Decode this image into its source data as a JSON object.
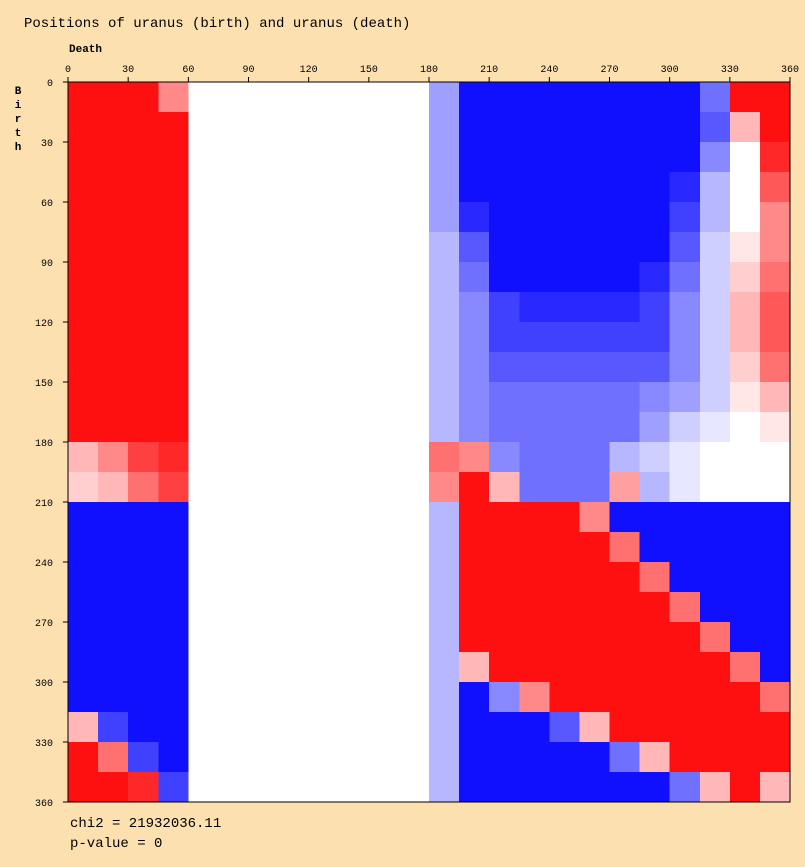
{
  "chart_data": {
    "type": "heatmap",
    "title": "Positions of uranus (birth) and uranus (death)",
    "x_label": "Death",
    "y_label": "Birth",
    "xlim": [
      0,
      360
    ],
    "ylim": [
      0,
      360
    ],
    "xticks": [
      0,
      30,
      60,
      90,
      120,
      150,
      180,
      210,
      240,
      270,
      300,
      330,
      360
    ],
    "yticks": [
      0,
      30,
      60,
      90,
      120,
      150,
      180,
      210,
      240,
      270,
      300,
      330,
      360
    ],
    "colors": {
      "high": "#ff1010",
      "low": "#1010ff",
      "zero": "#ffffff"
    },
    "values": [
      [
        1,
        1,
        1,
        0.5,
        0,
        0,
        0,
        0,
        0,
        0,
        0,
        0,
        -0.4,
        -1,
        -1,
        -1,
        -1,
        -1,
        -1,
        -1,
        -1,
        -0.6,
        1,
        1
      ],
      [
        1,
        1,
        1,
        1,
        0,
        0,
        0,
        0,
        0,
        0,
        0,
        0,
        -0.4,
        -1,
        -1,
        -1,
        -1,
        -1,
        -1,
        -1,
        -1,
        -0.7,
        0.3,
        1
      ],
      [
        1,
        1,
        1,
        1,
        0,
        0,
        0,
        0,
        0,
        0,
        0,
        0,
        -0.4,
        -1,
        -1,
        -1,
        -1,
        -1,
        -1,
        -1,
        -1,
        -0.5,
        0,
        0.9
      ],
      [
        1,
        1,
        1,
        1,
        0,
        0,
        0,
        0,
        0,
        0,
        0,
        0,
        -0.4,
        -1,
        -1,
        -1,
        -1,
        -1,
        -1,
        -1,
        -0.9,
        -0.3,
        0,
        0.7
      ],
      [
        1,
        1,
        1,
        1,
        0,
        0,
        0,
        0,
        0,
        0,
        0,
        0,
        -0.4,
        -0.9,
        -1,
        -1,
        -1,
        -1,
        -1,
        -1,
        -0.8,
        -0.3,
        0,
        0.5
      ],
      [
        1,
        1,
        1,
        1,
        0,
        0,
        0,
        0,
        0,
        0,
        0,
        0,
        -0.3,
        -0.7,
        -1,
        -1,
        -1,
        -1,
        -1,
        -1,
        -0.7,
        -0.2,
        0.1,
        0.5
      ],
      [
        1,
        1,
        1,
        1,
        0,
        0,
        0,
        0,
        0,
        0,
        0,
        0,
        -0.3,
        -0.6,
        -1,
        -1,
        -1,
        -1,
        -1,
        -0.9,
        -0.6,
        -0.2,
        0.2,
        0.6
      ],
      [
        1,
        1,
        1,
        1,
        0,
        0,
        0,
        0,
        0,
        0,
        0,
        0,
        -0.3,
        -0.5,
        -0.8,
        -0.9,
        -0.9,
        -0.9,
        -0.9,
        -0.8,
        -0.5,
        -0.2,
        0.3,
        0.7
      ],
      [
        1,
        1,
        1,
        1,
        0,
        0,
        0,
        0,
        0,
        0,
        0,
        0,
        -0.3,
        -0.5,
        -0.8,
        -0.8,
        -0.8,
        -0.8,
        -0.8,
        -0.8,
        -0.5,
        -0.2,
        0.3,
        0.7
      ],
      [
        1,
        1,
        1,
        1,
        0,
        0,
        0,
        0,
        0,
        0,
        0,
        0,
        -0.3,
        -0.5,
        -0.7,
        -0.7,
        -0.7,
        -0.7,
        -0.7,
        -0.7,
        -0.5,
        -0.2,
        0.2,
        0.6
      ],
      [
        1,
        1,
        1,
        1,
        0,
        0,
        0,
        0,
        0,
        0,
        0,
        0,
        -0.3,
        -0.5,
        -0.6,
        -0.6,
        -0.6,
        -0.6,
        -0.6,
        -0.5,
        -0.4,
        -0.2,
        0.1,
        0.3
      ],
      [
        1,
        1,
        1,
        1,
        0,
        0,
        0,
        0,
        0,
        0,
        0,
        0,
        -0.3,
        -0.5,
        -0.6,
        -0.6,
        -0.6,
        -0.6,
        -0.6,
        -0.4,
        -0.2,
        -0.1,
        0,
        0.1
      ],
      [
        0.3,
        0.5,
        0.8,
        0.9,
        0,
        0,
        0,
        0,
        0,
        0,
        0,
        0,
        0.6,
        0.5,
        -0.5,
        -0.6,
        -0.6,
        -0.6,
        -0.3,
        -0.2,
        -0.1,
        0,
        0,
        0
      ],
      [
        0.2,
        0.3,
        0.6,
        0.8,
        0,
        0,
        0,
        0,
        0,
        0,
        0,
        0,
        0.5,
        1,
        0.3,
        -0.6,
        -0.6,
        -0.6,
        0.4,
        -0.3,
        -0.1,
        0,
        0,
        0
      ],
      [
        -1,
        -1,
        -1,
        -1,
        0,
        0,
        0,
        0,
        0,
        0,
        0,
        0,
        -0.3,
        1,
        1,
        1,
        1,
        0.5,
        -1,
        -1,
        -1,
        -1,
        -1,
        -1
      ],
      [
        -1,
        -1,
        -1,
        -1,
        0,
        0,
        0,
        0,
        0,
        0,
        0,
        0,
        -0.3,
        1,
        1,
        1,
        1,
        1,
        0.6,
        -1,
        -1,
        -1,
        -1,
        -1
      ],
      [
        -1,
        -1,
        -1,
        -1,
        0,
        0,
        0,
        0,
        0,
        0,
        0,
        0,
        -0.3,
        1,
        1,
        1,
        1,
        1,
        1,
        0.6,
        -1,
        -1,
        -1,
        -1
      ],
      [
        -1,
        -1,
        -1,
        -1,
        0,
        0,
        0,
        0,
        0,
        0,
        0,
        0,
        -0.3,
        1,
        1,
        1,
        1,
        1,
        1,
        1,
        0.6,
        -1,
        -1,
        -1
      ],
      [
        -1,
        -1,
        -1,
        -1,
        0,
        0,
        0,
        0,
        0,
        0,
        0,
        0,
        -0.3,
        1,
        1,
        1,
        1,
        1,
        1,
        1,
        1,
        0.6,
        -1,
        -1
      ],
      [
        -1,
        -1,
        -1,
        -1,
        0,
        0,
        0,
        0,
        0,
        0,
        0,
        0,
        -0.3,
        0.3,
        1,
        1,
        1,
        1,
        1,
        1,
        1,
        1,
        0.6,
        -1
      ],
      [
        -1,
        -1,
        -1,
        -1,
        0,
        0,
        0,
        0,
        0,
        0,
        0,
        0,
        -0.3,
        -1,
        -0.5,
        0.5,
        1,
        1,
        1,
        1,
        1,
        1,
        1,
        0.6
      ],
      [
        0.3,
        -0.8,
        -1,
        -1,
        0,
        0,
        0,
        0,
        0,
        0,
        0,
        0,
        -0.3,
        -1,
        -1,
        -1,
        -0.7,
        0.3,
        1,
        1,
        1,
        1,
        1,
        1
      ],
      [
        1,
        0.6,
        -0.8,
        -1,
        0,
        0,
        0,
        0,
        0,
        0,
        0,
        0,
        -0.3,
        -1,
        -1,
        -1,
        -1,
        -1,
        -0.6,
        0.3,
        1,
        1,
        1,
        1
      ],
      [
        1,
        1,
        0.9,
        -0.8,
        0,
        0,
        0,
        0,
        0,
        0,
        0,
        0,
        -0.3,
        -1,
        -1,
        -1,
        -1,
        -1,
        -1,
        -1,
        -0.6,
        0.3,
        1,
        0.3
      ]
    ],
    "annotations": [
      "chi2 = 21932036.11",
      "p-value = 0"
    ]
  }
}
